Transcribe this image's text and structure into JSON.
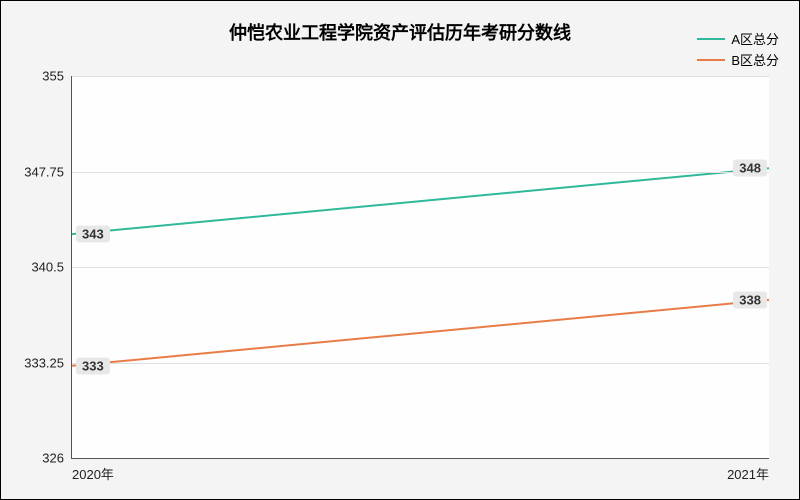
{
  "chart": {
    "type": "line",
    "title": "仲恺农业工程学院资产评估历年考研分数线",
    "title_fontsize": 18,
    "background_color": "#f4f4f4",
    "plot_background": "#fefefe",
    "grid_color": "#e0e0e0",
    "axis_color": "#555555",
    "x_labels": [
      "2020年",
      "2021年"
    ],
    "y_ticks": [
      326,
      333.25,
      340.5,
      347.75,
      355
    ],
    "ylim": [
      326,
      355
    ],
    "legend_position": "top-right",
    "series": [
      {
        "name": "A区总分",
        "color": "#2fb99a",
        "line_width": 2,
        "values": [
          343,
          348
        ]
      },
      {
        "name": "B区总分",
        "color": "#e87c47",
        "line_width": 2,
        "values": [
          333,
          338
        ]
      }
    ],
    "label_fontsize": 13,
    "point_label_bg": "#e8e8e8"
  }
}
